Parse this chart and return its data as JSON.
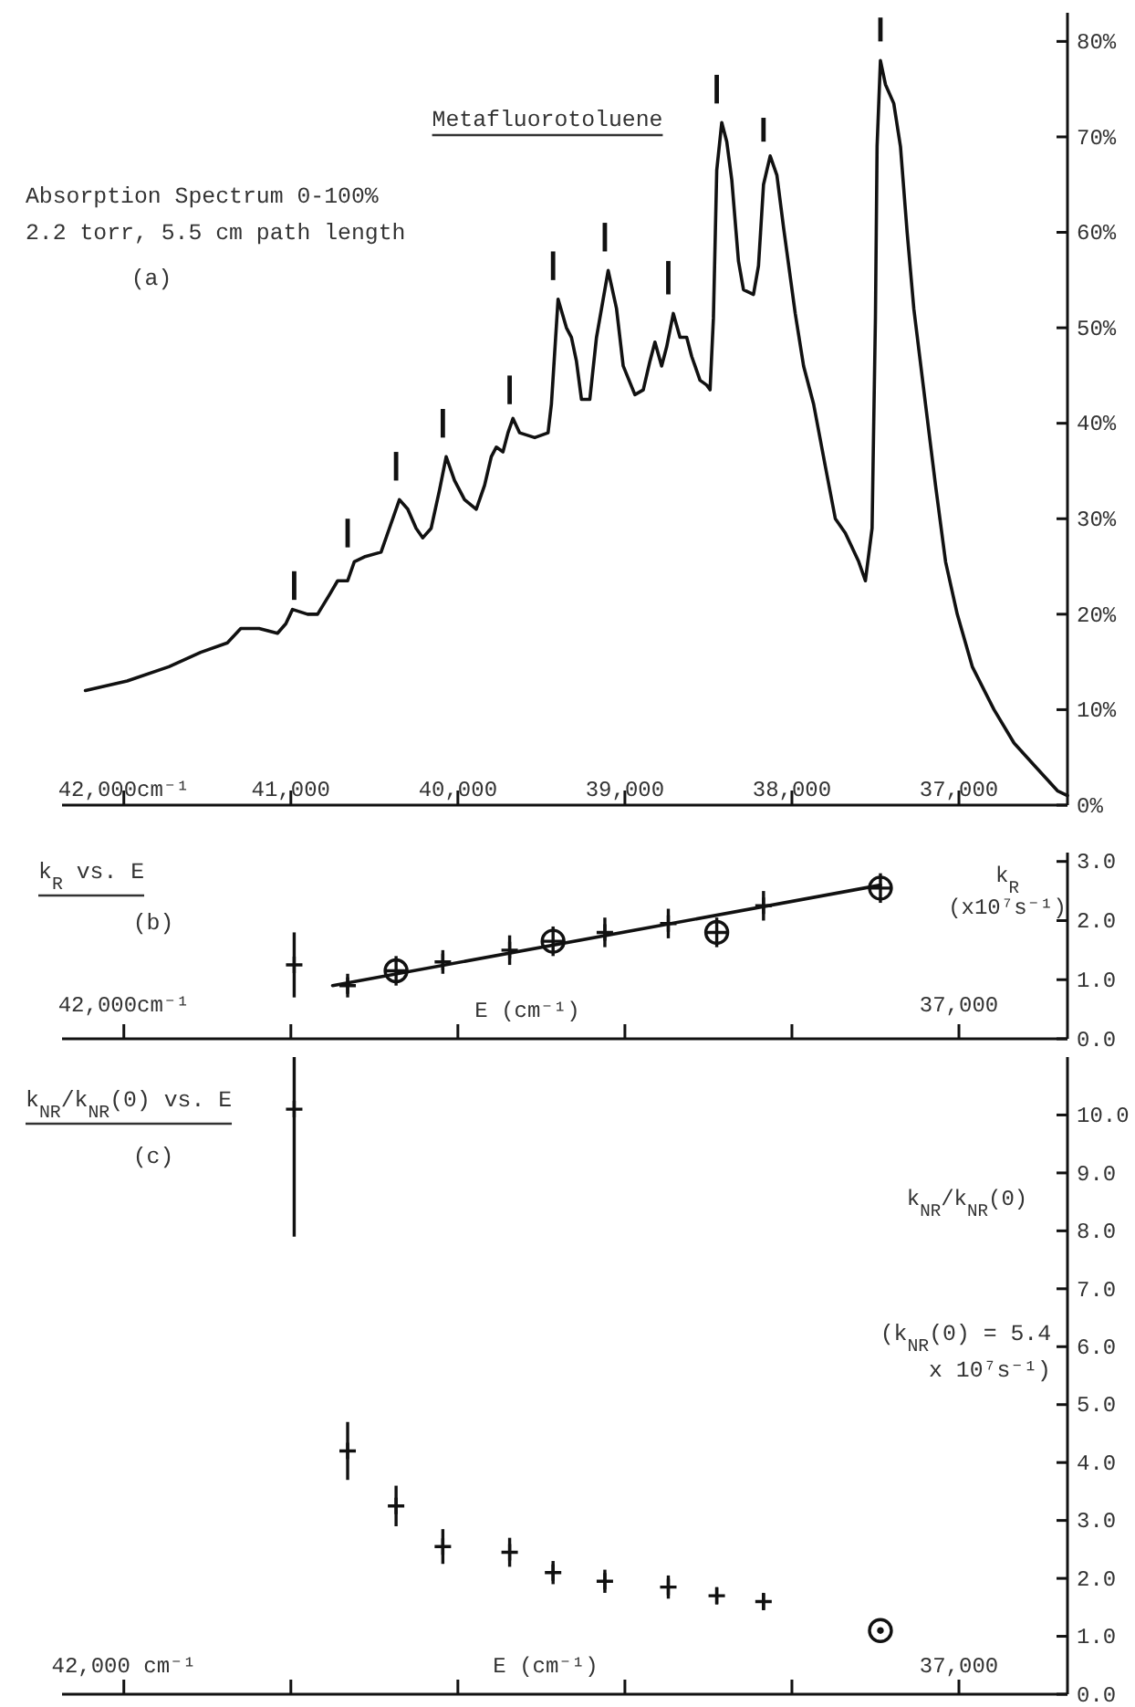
{
  "chart_data": [
    {
      "type": "line",
      "title": "Metafluorotoluene",
      "annotations": [
        "Absorption Spectrum 0-100%",
        "2.2 torr, 5.5 cm path length",
        "(a)"
      ],
      "xlim": [
        42370,
        36350
      ],
      "xticks": [
        {
          "value": 42000,
          "label": "42,000cm⁻¹"
        },
        {
          "value": 41000,
          "label": "41,000"
        },
        {
          "value": 40000,
          "label": "40,000"
        },
        {
          "value": 39000,
          "label": "39,000"
        },
        {
          "value": 38000,
          "label": "38,000"
        },
        {
          "value": 37000,
          "label": "37,000"
        }
      ],
      "ylim": [
        0,
        83
      ],
      "yticks": [
        {
          "value": 0,
          "label": "0%"
        },
        {
          "value": 10,
          "label": "10%"
        },
        {
          "value": 20,
          "label": "20%"
        },
        {
          "value": 30,
          "label": "30%"
        },
        {
          "value": 40,
          "label": "40%"
        },
        {
          "value": 50,
          "label": "50%"
        },
        {
          "value": 60,
          "label": "60%"
        },
        {
          "value": 70,
          "label": "70%"
        },
        {
          "value": 80,
          "label": "80%"
        }
      ],
      "series": [
        {
          "color": "#111111",
          "x": [
            42230,
            41980,
            41730,
            41540,
            41380,
            41300,
            41190,
            41080,
            41030,
            40990,
            40900,
            40840,
            40770,
            40720,
            40660,
            40620,
            40560,
            40460,
            40410,
            40350,
            40300,
            40250,
            40210,
            40160,
            40110,
            40070,
            40020,
            39960,
            39890,
            39840,
            39800,
            39770,
            39730,
            39700,
            39670,
            39630,
            39540,
            39460,
            39440,
            39400,
            39350,
            39320,
            39290,
            39260,
            39210,
            39170,
            39100,
            39050,
            39010,
            38940,
            38890,
            38850,
            38820,
            38780,
            38750,
            38710,
            38670,
            38630,
            38600,
            38550,
            38510,
            38490,
            38470,
            38450,
            38420,
            38390,
            38360,
            38320,
            38290,
            38230,
            38200,
            38170,
            38130,
            38090,
            38050,
            37980,
            37930,
            37870,
            37800,
            37740,
            37680,
            37600,
            37560,
            37520,
            37500,
            37490,
            37470,
            37440,
            37390,
            37350,
            37310,
            37270,
            37200,
            37140,
            37080,
            37010,
            36920,
            36790,
            36670,
            36540,
            36410,
            36350
          ],
          "values": [
            12,
            13,
            14.5,
            16,
            17,
            18.5,
            18.5,
            18,
            19,
            20.5,
            20,
            20,
            22,
            23.5,
            23.5,
            25.5,
            26,
            26.5,
            29,
            32,
            31,
            29,
            28,
            29,
            33,
            36.5,
            34,
            32,
            31,
            33.5,
            36.5,
            37.5,
            37,
            39,
            40.5,
            39,
            38.5,
            39,
            42,
            53,
            50,
            49,
            46.5,
            42.5,
            42.5,
            49,
            56,
            52,
            46,
            43,
            43.5,
            46.5,
            48.5,
            46,
            48,
            51.5,
            49,
            49,
            47,
            44.5,
            44,
            43.5,
            51,
            66.5,
            71.5,
            69.5,
            65.5,
            57,
            54,
            53.5,
            56.5,
            65,
            68,
            66,
            60.5,
            51.5,
            46,
            42,
            35.5,
            30,
            28.5,
            25.5,
            23.5,
            29,
            51,
            69,
            78,
            75.5,
            73.5,
            69,
            60,
            52,
            42,
            33.5,
            25.5,
            20,
            14.5,
            10,
            6.5,
            4,
            1.5,
            1
          ]
        },
        {
          "type": "bar",
          "color": "#111111",
          "x": [
            40980,
            40660,
            40370,
            40090,
            39690,
            39430,
            39120,
            38740,
            38450,
            38170,
            37470
          ],
          "base": [
            21.5,
            27,
            34,
            38.5,
            42,
            55,
            58,
            53.5,
            73.5,
            69.5,
            80
          ],
          "values": [
            3,
            3,
            3,
            3,
            3,
            3,
            3,
            3.5,
            3,
            2.5,
            2.5
          ]
        }
      ]
    },
    {
      "type": "scatter",
      "title": "k$_{R}$ vs. E",
      "annotations": [
        "(b)"
      ],
      "xlabel": "E (cm⁻¹)",
      "ylabel": "k$_{R}$\n(x10⁷s⁻¹)",
      "xlim": [
        42370,
        36350
      ],
      "xticks": [
        {
          "value": 42000,
          "label": "42,000cm⁻¹"
        },
        {
          "value": 41000,
          "label": null
        },
        {
          "value": 40000,
          "label": null
        },
        {
          "value": 39000,
          "label": null
        },
        {
          "value": 38000,
          "label": null
        },
        {
          "value": 37000,
          "label": "37,000"
        }
      ],
      "ylim": [
        0,
        3.15
      ],
      "yticks": [
        {
          "value": 0,
          "label": "0.0"
        },
        {
          "value": 1,
          "label": "1.0"
        },
        {
          "value": 2,
          "label": "2.0"
        },
        {
          "value": 3,
          "label": "3.0"
        }
      ],
      "series": [
        {
          "type": "line",
          "color": "#111111",
          "x": [
            40750,
            37470
          ],
          "values": [
            0.9,
            2.6
          ]
        },
        {
          "marker": "cross",
          "color": "#111111",
          "x": [
            40980,
            40660,
            40090,
            39690,
            39120,
            38740,
            38170
          ],
          "values": [
            1.25,
            0.9,
            1.3,
            1.5,
            1.8,
            1.95,
            2.25
          ],
          "errors": [
            [
              0.7,
              1.8
            ],
            0.2,
            0.2,
            0.25,
            0.25,
            0.25,
            0.25
          ]
        },
        {
          "marker": "circle",
          "color": "#111111",
          "x": [
            40370,
            39430,
            38450,
            37470
          ],
          "values": [
            1.15,
            1.65,
            1.8,
            2.55
          ],
          "errors": [
            0.25,
            0.25,
            0.25,
            0.25
          ]
        }
      ]
    },
    {
      "type": "scatter",
      "title": "k$_{NR}$/k$_{NR}$(0) vs. E",
      "annotations": [
        "(c)",
        "(k$_{NR}$(0) = 5.4\nx 10⁷s⁻¹)"
      ],
      "xlabel": "E (cm⁻¹)",
      "ylabel": "k$_{NR}$/k$_{NR}$(0)",
      "xlim": [
        42370,
        36350
      ],
      "xticks": [
        {
          "value": 42000,
          "label": "42,000 cm⁻¹"
        },
        {
          "value": 41000,
          "label": null
        },
        {
          "value": 40000,
          "label": null
        },
        {
          "value": 39000,
          "label": null
        },
        {
          "value": 38000,
          "label": null
        },
        {
          "value": 37000,
          "label": "37,000"
        }
      ],
      "ylim": [
        0,
        11
      ],
      "yticks": [
        {
          "value": 0,
          "label": "0.0"
        },
        {
          "value": 1,
          "label": "1.0"
        },
        {
          "value": 2,
          "label": "2.0"
        },
        {
          "value": 3,
          "label": "3.0"
        },
        {
          "value": 4,
          "label": "4.0"
        },
        {
          "value": 5,
          "label": "5.0"
        },
        {
          "value": 6,
          "label": "6.0"
        },
        {
          "value": 7,
          "label": "7.0"
        },
        {
          "value": 8,
          "label": "8.0"
        },
        {
          "value": 9,
          "label": "9.0"
        },
        {
          "value": 10,
          "label": "10.0"
        }
      ],
      "series": [
        {
          "marker": "cross",
          "color": "#111111",
          "x": [
            40980,
            40660,
            40370,
            40090,
            39690,
            39430,
            39120,
            38740,
            38450,
            38170
          ],
          "values": [
            10.1,
            4.2,
            3.25,
            2.55,
            2.45,
            2.1,
            1.95,
            1.85,
            1.7,
            1.6
          ],
          "errors": [
            [
              7.9,
              11
            ],
            0.5,
            0.35,
            0.3,
            0.25,
            0.2,
            0.2,
            0.2,
            0.15,
            0.15
          ]
        },
        {
          "marker": "circle",
          "color": "#111111",
          "x": [
            37470
          ],
          "values": [
            1.1
          ]
        }
      ]
    }
  ]
}
